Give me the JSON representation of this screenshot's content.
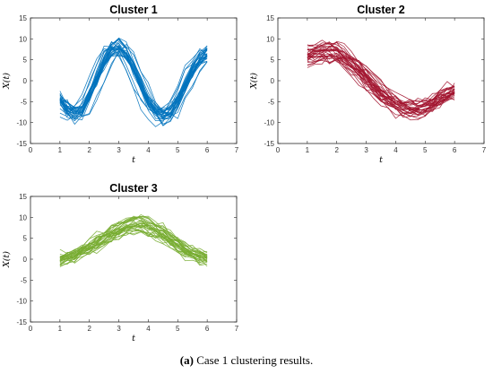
{
  "figure": {
    "caption_tag": "(a)",
    "caption_text": " Case 1 clustering results."
  },
  "chart_data": [
    {
      "type": "line",
      "title": "Cluster 1",
      "xlabel": "t",
      "ylabel": "X(t)",
      "xlim": [
        0,
        7
      ],
      "ylim": [
        -15,
        15
      ],
      "xticks": [
        "0",
        "1",
        "2",
        "3",
        "4",
        "5",
        "6",
        "7"
      ],
      "yticks": [
        "-15",
        "-10",
        "-5",
        "0",
        "5",
        "10",
        "15"
      ],
      "color": "#0072BD",
      "n_curves": 30,
      "x": [
        1.0,
        1.25,
        1.5,
        1.75,
        2.0,
        2.25,
        2.5,
        2.75,
        3.0,
        3.25,
        3.5,
        3.75,
        4.0,
        4.25,
        4.5,
        4.75,
        5.0,
        5.25,
        5.5,
        5.75,
        6.0
      ],
      "mean_curve": [
        -4,
        -6.5,
        -7.5,
        -6.5,
        -3.5,
        0.5,
        4.5,
        7.3,
        8,
        6.5,
        3,
        -1,
        -4.5,
        -7,
        -8,
        -7,
        -4.5,
        -1,
        2.5,
        5,
        6.5
      ],
      "spread": 2.2
    },
    {
      "type": "line",
      "title": "Cluster 2",
      "xlabel": "t",
      "ylabel": "X(t)",
      "xlim": [
        0,
        7
      ],
      "ylim": [
        -15,
        15
      ],
      "xticks": [
        "0",
        "1",
        "2",
        "3",
        "4",
        "5",
        "6",
        "7"
      ],
      "yticks": [
        "-15",
        "-10",
        "-5",
        "0",
        "5",
        "10",
        "15"
      ],
      "color": "#A2142F",
      "n_curves": 30,
      "x": [
        1.0,
        1.25,
        1.5,
        1.75,
        2.0,
        2.25,
        2.5,
        2.75,
        3.0,
        3.25,
        3.5,
        3.75,
        4.0,
        4.25,
        4.5,
        4.75,
        5.0,
        5.25,
        5.5,
        5.75,
        6.0
      ],
      "mean_curve": [
        5.5,
        6.5,
        7,
        7,
        6.5,
        5.5,
        4,
        2.5,
        0.5,
        -1.5,
        -3,
        -4.5,
        -5.5,
        -6.5,
        -7,
        -7,
        -6.5,
        -5.5,
        -4.5,
        -3.5,
        -2.5
      ],
      "spread": 2.2
    },
    {
      "type": "line",
      "title": "Cluster 3",
      "xlabel": "t",
      "ylabel": "X(t)",
      "xlim": [
        0,
        7
      ],
      "ylim": [
        -15,
        15
      ],
      "xticks": [
        "0",
        "1",
        "2",
        "3",
        "4",
        "5",
        "6",
        "7"
      ],
      "yticks": [
        "-15",
        "-10",
        "-5",
        "0",
        "5",
        "10",
        "15"
      ],
      "color": "#77AC30",
      "n_curves": 30,
      "x": [
        1.0,
        1.25,
        1.5,
        1.75,
        2.0,
        2.25,
        2.5,
        2.75,
        3.0,
        3.25,
        3.5,
        3.75,
        4.0,
        4.25,
        4.5,
        4.75,
        5.0,
        5.25,
        5.5,
        5.75,
        6.0
      ],
      "mean_curve": [
        0,
        0.5,
        1,
        2,
        3,
        4,
        5,
        6,
        7,
        8,
        8.5,
        8.5,
        8,
        7,
        6,
        5,
        3.5,
        2.5,
        1.5,
        0.8,
        0.3
      ],
      "spread": 2.0
    }
  ]
}
